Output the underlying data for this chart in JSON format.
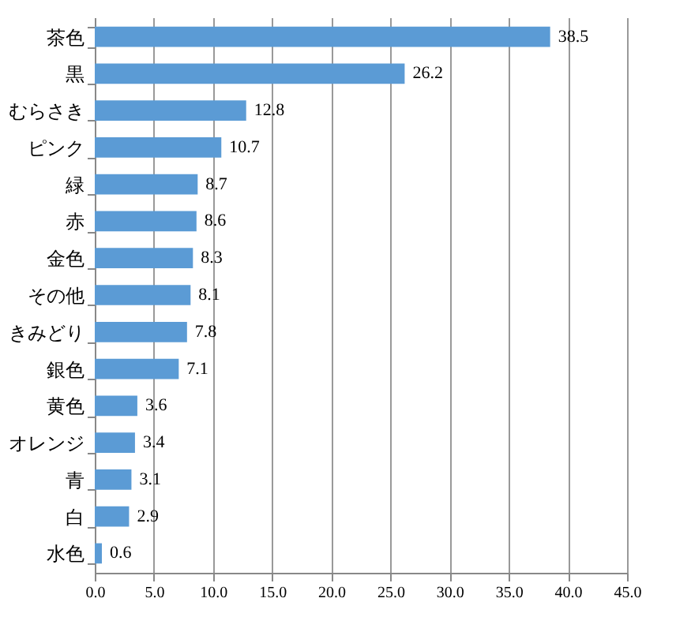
{
  "chart_data": {
    "type": "bar",
    "orientation": "horizontal",
    "categories": [
      "茶色",
      "黒",
      "むらさき",
      "ピンク",
      "緑",
      "赤",
      "金色",
      "その他",
      "きみどり",
      "銀色",
      "黄色",
      "オレンジ",
      "青",
      "白",
      "水色"
    ],
    "values": [
      38.5,
      26.2,
      12.8,
      10.7,
      8.7,
      8.6,
      8.3,
      8.1,
      7.8,
      7.1,
      3.6,
      3.4,
      3.1,
      2.9,
      0.6
    ],
    "color": "#5b9bd5",
    "xlim": [
      0,
      45
    ],
    "xticks": [
      {
        "value": 0,
        "label": "0.0"
      },
      {
        "value": 5,
        "label": "5.0"
      },
      {
        "value": 10,
        "label": "10.0"
      },
      {
        "value": 15,
        "label": "15.0"
      },
      {
        "value": 20,
        "label": "20.0"
      },
      {
        "value": 25,
        "label": "25.0"
      },
      {
        "value": 30,
        "label": "30.0"
      },
      {
        "value": 35,
        "label": "35.0"
      },
      {
        "value": 40,
        "label": "40.0"
      },
      {
        "value": 45,
        "label": "45.0"
      }
    ],
    "grid": "x",
    "data_labels": true
  }
}
